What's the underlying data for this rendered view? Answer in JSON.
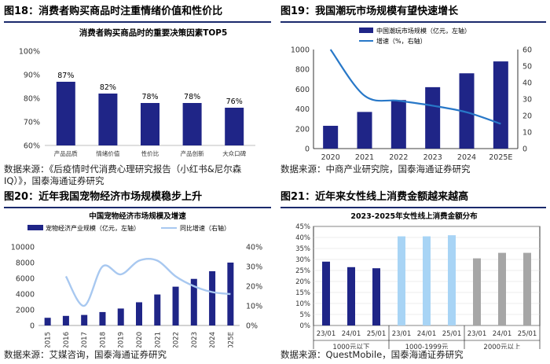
{
  "panels": [
    {
      "fig_title": "图18：消费者购买商品时注重情绪价值和性价比",
      "source_lines": [
        "数据来源：《后疫情时代消费心理研究报告（小红书&尼尔森",
        "IQ）》，国泰海通证券研究"
      ]
    },
    {
      "fig_title": "图19：我国潮玩市场规模有望快速增长",
      "source_lines": [
        "数据来源：中商产业研究院，国泰海通证券研究"
      ]
    },
    {
      "fig_title": "图20：近年我国宠物经济市场规模稳步上升",
      "source_lines": [
        "数据来源：艾媒咨询，国泰海通证券研究"
      ]
    },
    {
      "fig_title": "图21：近年来女性线上消费金额越来越高",
      "source_lines": [
        "数据来源：QuestMobile，国泰海通证券研究"
      ]
    }
  ],
  "colors": {
    "navy": "#1f2587",
    "blue": "#2878c8",
    "lightblue": "#a8d4f5",
    "gray": "#a6a6a6",
    "rule": "#1a2a6c"
  },
  "chart_data": [
    {
      "type": "bar",
      "title": "消费者购买商品时的重要决策因素TOP5",
      "categories": [
        "产品品质",
        "情绪价值",
        "性价比",
        "产品创新",
        "大众口碑"
      ],
      "values": [
        87,
        82,
        78,
        78,
        76
      ],
      "value_labels": [
        "87%",
        "82%",
        "78%",
        "78%",
        "76%"
      ],
      "ylim": [
        60,
        100
      ],
      "yticks": [
        60,
        70,
        80,
        90,
        100
      ],
      "ytick_labels": [
        "60%",
        "70%",
        "80%",
        "90%",
        "100%"
      ]
    },
    {
      "type": "bar+line",
      "categories": [
        "2020",
        "2021",
        "2022",
        "2023",
        "2024",
        "2025E"
      ],
      "series": [
        {
          "name": "中国潮玩市场规模（亿元，左轴）",
          "type": "bar",
          "axis": "left",
          "values": [
            230,
            370,
            490,
            620,
            760,
            880
          ]
        },
        {
          "name": "增速（%，右轴）",
          "type": "line",
          "axis": "right",
          "values": [
            60,
            32,
            29,
            26,
            22,
            15
          ]
        }
      ],
      "ylim_left": [
        0,
        1000
      ],
      "yticks_left": [
        0,
        200,
        400,
        600,
        800,
        1000
      ],
      "ylim_right": [
        0,
        60
      ],
      "yticks_right": [
        0,
        10,
        20,
        30,
        40,
        50,
        60
      ],
      "legend": "top-right"
    },
    {
      "type": "bar+line",
      "title": "中国宠物经济市场规模及增速",
      "categories": [
        "2015",
        "2016",
        "2017",
        "2018",
        "2019",
        "2020",
        "2021",
        "2022",
        "2023",
        "2024",
        "2025E"
      ],
      "series": [
        {
          "name": "宠物经济产业规模（亿元，左轴）",
          "type": "bar",
          "axis": "left",
          "values": [
            978,
            1220,
            1340,
            1708,
            2157,
            2953,
            3942,
            4936,
            5928,
            6900,
            8000
          ]
        },
        {
          "name": "同比增速（右轴）",
          "type": "line",
          "axis": "right",
          "values": [
            null,
            25,
            10,
            30,
            26,
            33,
            33,
            25,
            20,
            17,
            16
          ]
        }
      ],
      "ylim_left": [
        0,
        10000
      ],
      "yticks_left": [
        0,
        2000,
        4000,
        6000,
        8000,
        10000
      ],
      "ylim_right": [
        0,
        40
      ],
      "yticks_right": [
        0,
        10,
        20,
        30,
        40
      ],
      "ytick_right_labels": [
        "0%",
        "10%",
        "20%",
        "30%",
        "40%"
      ],
      "legend": "top"
    },
    {
      "type": "bar",
      "title": "2023-2025年女性线上消费金额分布",
      "categories": [
        "23/01",
        "24/01",
        "25/01",
        "23/01",
        "24/01",
        "25/01",
        "23/01",
        "24/01",
        "25/01"
      ],
      "groups": [
        "1000元以下",
        "1000-1999元",
        "2000元以上"
      ],
      "values": [
        29,
        26.5,
        26,
        40.5,
        40.5,
        41,
        30.5,
        33,
        33
      ],
      "ylim": [
        0,
        45
      ],
      "yticks": [
        0,
        5,
        10,
        15,
        20,
        25,
        30,
        35,
        40,
        45
      ],
      "ytick_labels": [
        "0%",
        "5%",
        "10%",
        "15%",
        "20%",
        "25%",
        "30%",
        "35%",
        "40%",
        "45%"
      ]
    }
  ]
}
